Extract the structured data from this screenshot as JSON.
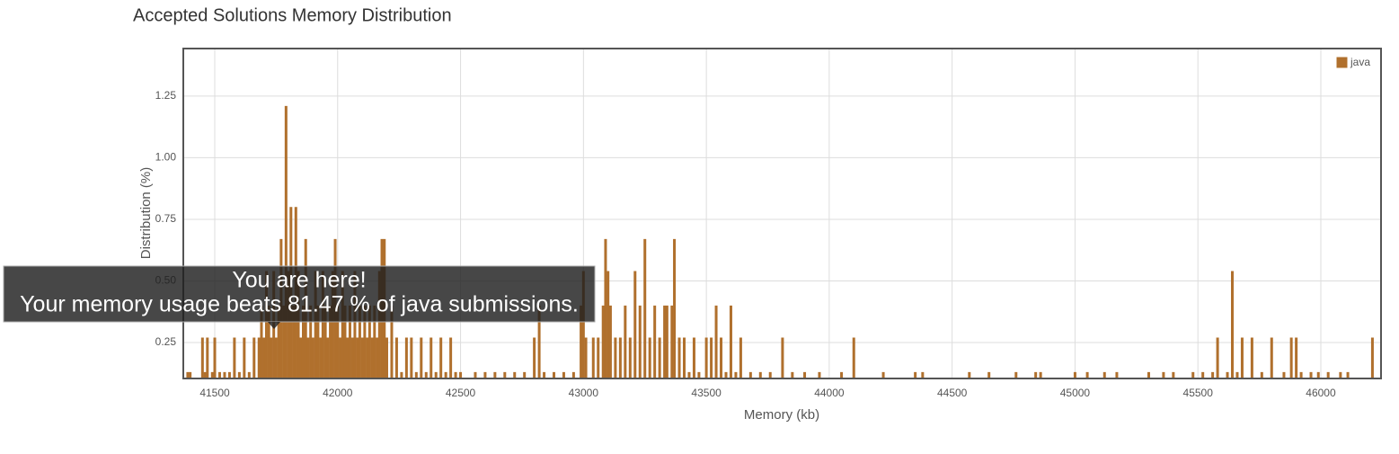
{
  "chart_data": {
    "type": "bar",
    "title": "Accepted Solutions Memory Distribution",
    "xlabel": "Memory (kb)",
    "ylabel": "Distribution (%)",
    "x": [
      41390,
      41400,
      41450,
      41460,
      41470,
      41490,
      41500,
      41520,
      41540,
      41560,
      41580,
      41600,
      41620,
      41640,
      41660,
      41680,
      41690,
      41700,
      41710,
      41720,
      41730,
      41740,
      41750,
      41760,
      41770,
      41780,
      41790,
      41800,
      41810,
      41820,
      41830,
      41840,
      41850,
      41860,
      41870,
      41880,
      41890,
      41900,
      41910,
      41920,
      41930,
      41940,
      41950,
      41960,
      41970,
      41980,
      41990,
      42000,
      42010,
      42020,
      42030,
      42040,
      42050,
      42060,
      42070,
      42080,
      42090,
      42100,
      42110,
      42120,
      42130,
      42140,
      42150,
      42160,
      42170,
      42180,
      42190,
      42200,
      42220,
      42240,
      42260,
      42280,
      42300,
      42320,
      42340,
      42360,
      42380,
      42400,
      42420,
      42440,
      42460,
      42480,
      42500,
      42560,
      42600,
      42640,
      42680,
      42720,
      42760,
      42800,
      42820,
      42840,
      42880,
      42920,
      42960,
      42990,
      43000,
      43010,
      43040,
      43060,
      43080,
      43090,
      43100,
      43110,
      43130,
      43150,
      43170,
      43190,
      43210,
      43230,
      43250,
      43270,
      43290,
      43310,
      43330,
      43340,
      43360,
      43370,
      43390,
      43410,
      43430,
      43450,
      43470,
      43500,
      43520,
      43540,
      43560,
      43580,
      43600,
      43620,
      43640,
      43680,
      43720,
      43760,
      43810,
      43850,
      43900,
      43960,
      44050,
      44100,
      44220,
      44350,
      44380,
      44570,
      44650,
      44760,
      44840,
      44860,
      45000,
      45050,
      45120,
      45170,
      45300,
      45360,
      45400,
      45480,
      45520,
      45560,
      45580,
      45620,
      45640,
      45660,
      45680,
      45720,
      45760,
      45800,
      45850,
      45880,
      45900,
      45920,
      45960,
      45990,
      46030,
      46080,
      46110,
      46210
    ],
    "series": [
      {
        "name": "java",
        "color": "#b0702d",
        "values": [
          0.13,
          0.13,
          0.27,
          0.13,
          0.27,
          0.13,
          0.27,
          0.13,
          0.13,
          0.13,
          0.27,
          0.13,
          0.27,
          0.13,
          0.27,
          0.27,
          0.4,
          0.27,
          0.54,
          0.4,
          0.27,
          0.54,
          0.27,
          0.4,
          0.67,
          0.4,
          1.21,
          0.54,
          0.8,
          0.4,
          0.8,
          0.54,
          0.27,
          0.4,
          0.67,
          0.27,
          0.4,
          0.27,
          0.54,
          0.4,
          0.27,
          0.54,
          0.4,
          0.27,
          0.4,
          0.54,
          0.67,
          0.4,
          0.27,
          0.54,
          0.4,
          0.27,
          0.4,
          0.27,
          0.54,
          0.27,
          0.4,
          0.27,
          0.4,
          0.27,
          0.4,
          0.27,
          0.4,
          0.27,
          0.54,
          0.67,
          0.67,
          0.27,
          0.4,
          0.27,
          0.13,
          0.27,
          0.27,
          0.13,
          0.27,
          0.13,
          0.27,
          0.13,
          0.27,
          0.13,
          0.27,
          0.13,
          0.13,
          0.13,
          0.13,
          0.13,
          0.13,
          0.13,
          0.13,
          0.27,
          0.4,
          0.13,
          0.13,
          0.13,
          0.13,
          0.4,
          0.54,
          0.27,
          0.27,
          0.27,
          0.4,
          0.67,
          0.54,
          0.4,
          0.27,
          0.27,
          0.4,
          0.27,
          0.54,
          0.4,
          0.67,
          0.27,
          0.4,
          0.27,
          0.4,
          0.4,
          0.4,
          0.67,
          0.27,
          0.27,
          0.13,
          0.27,
          0.13,
          0.27,
          0.27,
          0.4,
          0.27,
          0.13,
          0.4,
          0.13,
          0.27,
          0.13,
          0.13,
          0.13,
          0.27,
          0.13,
          0.13,
          0.13,
          0.13,
          0.27,
          0.13,
          0.13,
          0.13,
          0.13,
          0.13,
          0.13,
          0.13,
          0.13,
          0.13,
          0.13,
          0.13,
          0.13,
          0.13,
          0.13,
          0.13,
          0.13,
          0.13,
          0.13,
          0.27,
          0.13,
          0.54,
          0.13,
          0.27,
          0.27,
          0.13,
          0.27,
          0.13,
          0.27,
          0.27,
          0.13,
          0.13,
          0.13,
          0.13,
          0.13,
          0.13,
          0.27
        ]
      }
    ],
    "xlim": [
      41372,
      46245
    ],
    "ylim": [
      0.104,
      1.443
    ],
    "xticks": [
      41500,
      42000,
      42500,
      43000,
      43500,
      44000,
      44500,
      45000,
      45500,
      46000
    ],
    "yticks": [
      0.25,
      {
        "value": 0.5,
        "label": "0.50"
      },
      0.75,
      {
        "value": 1,
        "label": "1.00"
      },
      1.25
    ],
    "grid": true,
    "legend": "upper right",
    "tooltip": {
      "title": "You are here!",
      "text": "Your memory usage beats 81.47 % of java submissions."
    }
  }
}
